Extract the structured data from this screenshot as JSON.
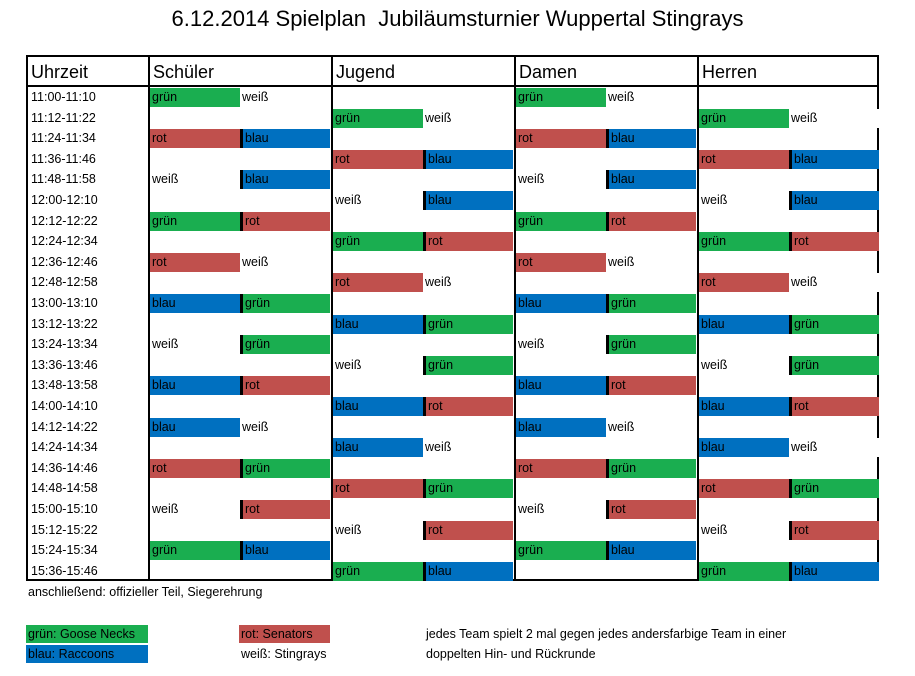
{
  "title": "6.12.2014 Spielplan  Jubiläumsturnier Wuppertal Stingrays",
  "colors": {
    "grün": "#1aae50",
    "rot": "#c0504d",
    "blau": "#0070c0",
    "weiß": "#ffffff"
  },
  "headers": [
    "Uhrzeit",
    "Schüler",
    "Jugend",
    "Damen",
    "Herren"
  ],
  "times": [
    "11:00-11:10",
    "11:12-11:22",
    "11:24-11:34",
    "11:36-11:46",
    "11:48-11:58",
    "12:00-12:10",
    "12:12-12:22",
    "12:24-12:34",
    "12:36-12:46",
    "12:48-12:58",
    "13:00-13:10",
    "13:12-13:22",
    "13:24-13:34",
    "13:36-13:46",
    "13:48-13:58",
    "14:00-14:10",
    "14:12-14:22",
    "14:24-14:34",
    "14:36-14:46",
    "14:48-14:58",
    "15:00-15:10",
    "15:12-15:22",
    "15:24-15:34",
    "15:36-15:46"
  ],
  "matches": {
    "Schüler": [
      [
        "grün",
        "weiß"
      ],
      null,
      [
        "rot",
        "blau"
      ],
      null,
      [
        "weiß",
        "blau"
      ],
      null,
      [
        "grün",
        "rot"
      ],
      null,
      [
        "rot",
        "weiß"
      ],
      null,
      [
        "blau",
        "grün"
      ],
      null,
      [
        "weiß",
        "grün"
      ],
      null,
      [
        "blau",
        "rot"
      ],
      null,
      [
        "blau",
        "weiß"
      ],
      null,
      [
        "rot",
        "grün"
      ],
      null,
      [
        "weiß",
        "rot"
      ],
      null,
      [
        "grün",
        "blau"
      ],
      null
    ],
    "Jugend": [
      null,
      [
        "grün",
        "weiß"
      ],
      null,
      [
        "rot",
        "blau"
      ],
      null,
      [
        "weiß",
        "blau"
      ],
      null,
      [
        "grün",
        "rot"
      ],
      null,
      [
        "rot",
        "weiß"
      ],
      null,
      [
        "blau",
        "grün"
      ],
      null,
      [
        "weiß",
        "grün"
      ],
      null,
      [
        "blau",
        "rot"
      ],
      null,
      [
        "blau",
        "weiß"
      ],
      null,
      [
        "rot",
        "grün"
      ],
      null,
      [
        "weiß",
        "rot"
      ],
      null,
      [
        "grün",
        "blau"
      ]
    ],
    "Damen": [
      [
        "grün",
        "weiß"
      ],
      null,
      [
        "rot",
        "blau"
      ],
      null,
      [
        "weiß",
        "blau"
      ],
      null,
      [
        "grün",
        "rot"
      ],
      null,
      [
        "rot",
        "weiß"
      ],
      null,
      [
        "blau",
        "grün"
      ],
      null,
      [
        "weiß",
        "grün"
      ],
      null,
      [
        "blau",
        "rot"
      ],
      null,
      [
        "blau",
        "weiß"
      ],
      null,
      [
        "rot",
        "grün"
      ],
      null,
      [
        "weiß",
        "rot"
      ],
      null,
      [
        "grün",
        "blau"
      ],
      null
    ],
    "Herren": [
      null,
      [
        "grün",
        "weiß"
      ],
      null,
      [
        "rot",
        "blau"
      ],
      null,
      [
        "weiß",
        "blau"
      ],
      null,
      [
        "grün",
        "rot"
      ],
      null,
      [
        "rot",
        "weiß"
      ],
      null,
      [
        "blau",
        "grün"
      ],
      null,
      [
        "weiß",
        "grün"
      ],
      null,
      [
        "blau",
        "rot"
      ],
      null,
      [
        "blau",
        "weiß"
      ],
      null,
      [
        "rot",
        "grün"
      ],
      null,
      [
        "weiß",
        "rot"
      ],
      null,
      [
        "grün",
        "blau"
      ]
    ]
  },
  "footer_note": "anschließend: offizieller Teil, Siegerehrung",
  "legend": [
    {
      "color": "grün",
      "label": "grün: Goose Necks"
    },
    {
      "color": "blau",
      "label": "blau: Raccoons"
    },
    {
      "color": "rot",
      "label": "rot: Senators"
    },
    {
      "color": "weiß",
      "label": "weiß: Stingrays"
    }
  ],
  "notes": [
    "jedes Team spielt 2 mal gegen jedes andersfarbige Team in einer",
    "doppelten Hin- und Rückrunde"
  ]
}
